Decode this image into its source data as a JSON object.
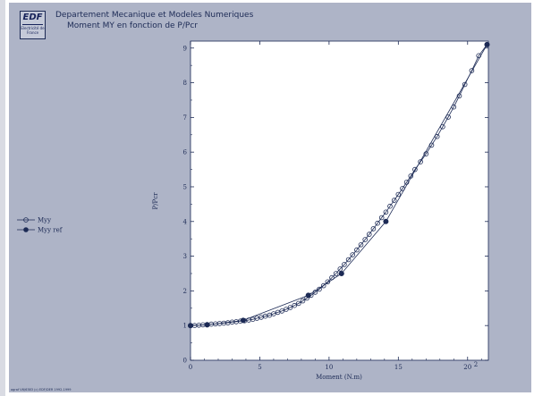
{
  "header": {
    "logo_text": "EDF",
    "logo_subtext": "Electricité de France",
    "organization": "Departement Mecanique et Modeles Numeriques",
    "title": "Moment MY en fonction de P/Pcr"
  },
  "footer": {
    "text": "agraf V6/6383 (c) EDF/DER 1992-1999"
  },
  "chart_data": {
    "type": "line",
    "title": "Moment MY en fonction de P/Pcr",
    "xlabel": "Moment (N.m)",
    "ylabel": "P/Pcr",
    "xlim": [
      0,
      21.5
    ],
    "ylim": [
      0,
      9.2
    ],
    "x_ticks": [
      "0",
      "5",
      "10",
      "15",
      "20"
    ],
    "x_exponent": "x10^2",
    "y_ticks": [
      "0",
      "1",
      "2",
      "3",
      "4",
      "5",
      "6",
      "7",
      "8",
      "9"
    ],
    "grid": false,
    "legend_position": "left",
    "series": [
      {
        "name": "Myy",
        "marker": "open-circle",
        "color": "#1c2a55",
        "points": [
          [
            0.0,
            1.0
          ],
          [
            0.3,
            1.0
          ],
          [
            0.6,
            1.01
          ],
          [
            0.9,
            1.02
          ],
          [
            1.2,
            1.03
          ],
          [
            1.5,
            1.04
          ],
          [
            1.8,
            1.05
          ],
          [
            2.1,
            1.06
          ],
          [
            2.4,
            1.07
          ],
          [
            2.7,
            1.08
          ],
          [
            3.0,
            1.1
          ],
          [
            3.3,
            1.11
          ],
          [
            3.6,
            1.13
          ],
          [
            3.9,
            1.14
          ],
          [
            4.2,
            1.16
          ],
          [
            4.5,
            1.18
          ],
          [
            4.8,
            1.21
          ],
          [
            5.1,
            1.24
          ],
          [
            5.4,
            1.27
          ],
          [
            5.7,
            1.3
          ],
          [
            6.0,
            1.34
          ],
          [
            6.3,
            1.38
          ],
          [
            6.6,
            1.42
          ],
          [
            6.9,
            1.47
          ],
          [
            7.2,
            1.52
          ],
          [
            7.5,
            1.58
          ],
          [
            7.8,
            1.64
          ],
          [
            8.1,
            1.71
          ],
          [
            8.4,
            1.79
          ],
          [
            8.7,
            1.87
          ],
          [
            9.0,
            1.96
          ],
          [
            9.3,
            2.05
          ],
          [
            9.6,
            2.15
          ],
          [
            9.9,
            2.26
          ],
          [
            10.2,
            2.38
          ],
          [
            10.5,
            2.5
          ],
          [
            10.8,
            2.63
          ],
          [
            11.1,
            2.76
          ],
          [
            11.4,
            2.9
          ],
          [
            11.7,
            3.04
          ],
          [
            12.0,
            3.18
          ],
          [
            12.3,
            3.33
          ],
          [
            12.6,
            3.48
          ],
          [
            12.9,
            3.63
          ],
          [
            13.2,
            3.79
          ],
          [
            13.5,
            3.95
          ],
          [
            13.8,
            4.11
          ],
          [
            14.1,
            4.27
          ],
          [
            14.4,
            4.44
          ],
          [
            14.7,
            4.61
          ],
          [
            15.0,
            4.78
          ],
          [
            15.3,
            4.95
          ],
          [
            15.6,
            5.13
          ],
          [
            15.9,
            5.31
          ],
          [
            16.2,
            5.5
          ],
          [
            16.6,
            5.72
          ],
          [
            17.0,
            5.95
          ],
          [
            17.4,
            6.2
          ],
          [
            17.8,
            6.45
          ],
          [
            18.2,
            6.73
          ],
          [
            18.6,
            7.01
          ],
          [
            19.0,
            7.3
          ],
          [
            19.4,
            7.62
          ],
          [
            19.8,
            7.95
          ],
          [
            20.3,
            8.35
          ],
          [
            20.8,
            8.78
          ],
          [
            21.4,
            9.1
          ]
        ]
      },
      {
        "name": "Myy ref",
        "marker": "filled-circle",
        "color": "#1c2a55",
        "points": [
          [
            0.0,
            1.0
          ],
          [
            1.2,
            1.02
          ],
          [
            3.8,
            1.15
          ],
          [
            8.5,
            1.87
          ],
          [
            10.9,
            2.5
          ],
          [
            14.1,
            4.0
          ],
          [
            21.4,
            9.1
          ]
        ]
      }
    ]
  }
}
